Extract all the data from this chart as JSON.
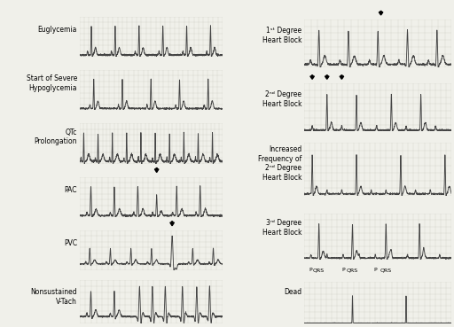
{
  "background_color": "#f0f0ea",
  "grid_color": "#b8b8aa",
  "ecg_color": "#444444",
  "text_color": "#000000",
  "arrow_color": "#000000",
  "fig_width": 5.12,
  "fig_height": 3.69,
  "labels_left": [
    "Euglycemia",
    "Start of Severe\nHypoglycemia",
    "QTc\nProlongation",
    "PAC",
    "PVC",
    "Nonsustained\nV-Tach"
  ],
  "labels_right": [
    "1st Degree\nHeart Block",
    "2nd Degree\nHeart Block",
    "Increased\nFrequency of\n2nd Degree\nHeart Block",
    "3rd Degree\nHeart Block",
    "Dead"
  ],
  "font_size_label": 5.5,
  "font_size_annotation": 4.5
}
